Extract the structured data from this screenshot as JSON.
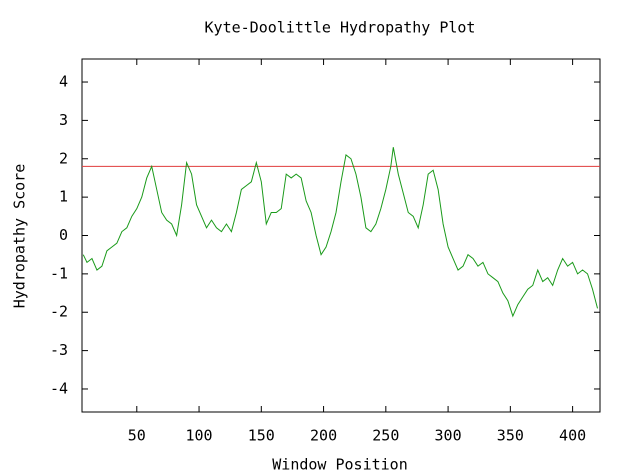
{
  "chart_data": {
    "type": "line",
    "title": "Kyte-Doolittle Hydropathy Plot",
    "x_label": "Window Position",
    "y_label": "Hydropathy Score",
    "xlim": [
      6,
      422
    ],
    "ylim": [
      -4.6,
      4.6
    ],
    "xticks": [
      50,
      100,
      150,
      200,
      250,
      300,
      350,
      400
    ],
    "yticks": [
      -4,
      -3,
      -2,
      -1,
      0,
      1,
      2,
      3,
      4
    ],
    "threshold": 1.8,
    "threshold_color": "#e03c3c",
    "x": [
      7,
      10,
      14,
      18,
      22,
      26,
      30,
      34,
      38,
      42,
      46,
      50,
      54,
      58,
      62,
      66,
      70,
      74,
      78,
      82,
      86,
      90,
      94,
      98,
      102,
      106,
      110,
      114,
      118,
      122,
      126,
      130,
      134,
      138,
      142,
      146,
      150,
      154,
      158,
      162,
      166,
      170,
      174,
      178,
      182,
      186,
      190,
      194,
      198,
      202,
      206,
      210,
      214,
      218,
      222,
      226,
      230,
      234,
      238,
      242,
      246,
      250,
      254,
      256,
      260,
      264,
      268,
      272,
      276,
      280,
      284,
      288,
      292,
      296,
      300,
      304,
      308,
      312,
      316,
      320,
      324,
      328,
      332,
      336,
      340,
      344,
      348,
      352,
      356,
      360,
      364,
      368,
      372,
      376,
      380,
      384,
      388,
      392,
      396,
      400,
      404,
      408,
      412,
      416,
      420
    ],
    "series": [
      {
        "color": "#1a9a1a",
        "values": [
          -0.5,
          -0.7,
          -0.6,
          -0.9,
          -0.8,
          -0.4,
          -0.3,
          -0.2,
          0.1,
          0.2,
          0.5,
          0.7,
          1.0,
          1.5,
          1.8,
          1.2,
          0.6,
          0.4,
          0.3,
          0.0,
          0.8,
          1.9,
          1.6,
          0.8,
          0.5,
          0.2,
          0.4,
          0.2,
          0.1,
          0.3,
          0.1,
          0.6,
          1.2,
          1.3,
          1.4,
          1.9,
          1.4,
          0.3,
          0.6,
          0.6,
          0.7,
          1.6,
          1.5,
          1.6,
          1.5,
          0.9,
          0.6,
          0.0,
          -0.5,
          -0.3,
          0.1,
          0.6,
          1.4,
          2.1,
          2.0,
          1.6,
          1.0,
          0.2,
          0.1,
          0.3,
          0.7,
          1.2,
          1.8,
          2.3,
          1.6,
          1.1,
          0.6,
          0.5,
          0.2,
          0.8,
          1.6,
          1.7,
          1.2,
          0.3,
          -0.3,
          -0.6,
          -0.9,
          -0.8,
          -0.5,
          -0.6,
          -0.8,
          -0.7,
          -1.0,
          -1.1,
          -1.2,
          -1.5,
          -1.7,
          -2.1,
          -1.8,
          -1.6,
          -1.4,
          -1.3,
          -0.9,
          -1.2,
          -1.1,
          -1.3,
          -0.9,
          -0.6,
          -0.8,
          -0.7,
          -1.0,
          -0.9,
          -1.0,
          -1.4,
          -1.9
        ]
      }
    ]
  }
}
